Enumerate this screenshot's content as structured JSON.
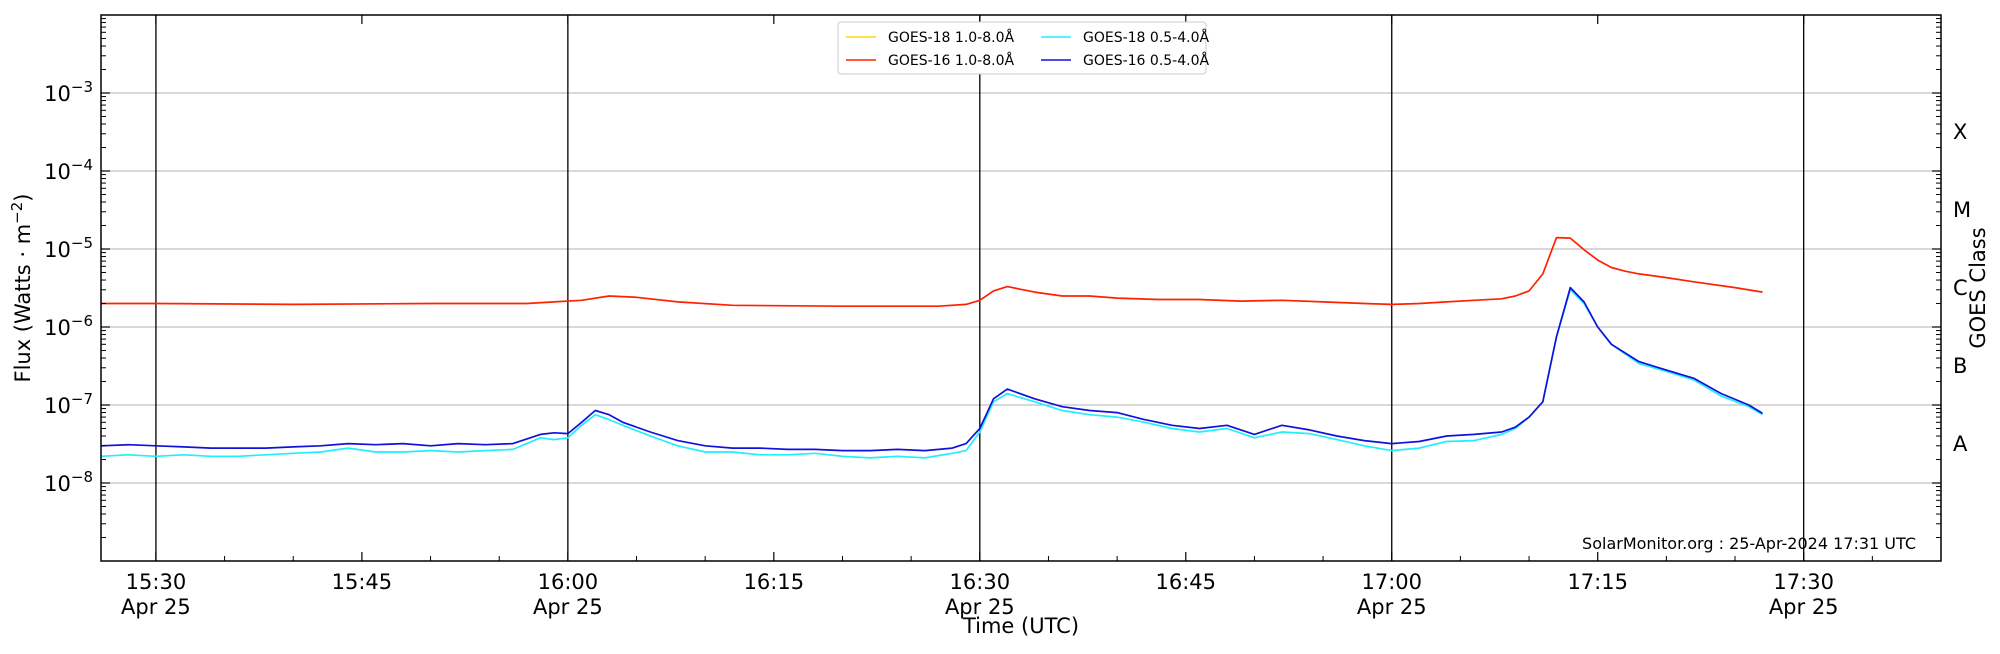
{
  "chart_data": {
    "type": "line",
    "xlabel": "Time (UTC)",
    "ylabel": "Flux (Watts · m⁻²)",
    "right_label": "GOES Class",
    "credit": "SolarMonitor.org : 25-Apr-2024 17:31 UTC",
    "x_range": [
      "15:26",
      "17:40"
    ],
    "y_scale": "log",
    "y_range": [
      1e-09,
      0.01
    ],
    "y_ticks": [
      {
        "value": 1e-08,
        "label": "10"
      },
      {
        "value": 1e-07,
        "label": "10"
      },
      {
        "value": 1e-06,
        "label": "10"
      },
      {
        "value": 1e-05,
        "label": "10"
      },
      {
        "value": 0.0001,
        "label": "10"
      },
      {
        "value": 0.001,
        "label": "10"
      }
    ],
    "y_tick_exponents": [
      "−8",
      "−7",
      "−6",
      "−5",
      "−4",
      "−3"
    ],
    "x_ticks": [
      {
        "time": "15:30",
        "line1": "15:30",
        "line2": "Apr 25"
      },
      {
        "time": "15:45",
        "line1": "15:45",
        "line2": ""
      },
      {
        "time": "16:00",
        "line1": "16:00",
        "line2": "Apr 25"
      },
      {
        "time": "16:15",
        "line1": "16:15",
        "line2": ""
      },
      {
        "time": "16:30",
        "line1": "16:30",
        "line2": "Apr 25"
      },
      {
        "time": "16:45",
        "line1": "16:45",
        "line2": ""
      },
      {
        "time": "17:00",
        "line1": "17:00",
        "line2": "Apr 25"
      },
      {
        "time": "17:15",
        "line1": "17:15",
        "line2": ""
      },
      {
        "time": "17:30",
        "line1": "17:30",
        "line2": "Apr 25"
      }
    ],
    "vertical_lines": [
      "15:30",
      "16:00",
      "16:30",
      "17:00",
      "17:30"
    ],
    "goes_classes": [
      {
        "label": "A",
        "value": 3.16e-08
      },
      {
        "label": "B",
        "value": 3.16e-07
      },
      {
        "label": "C",
        "value": 3.16e-06
      },
      {
        "label": "M",
        "value": 3.16e-05
      },
      {
        "label": "X",
        "value": 0.000316
      }
    ],
    "grid": true,
    "legend_position": "top-center",
    "series": [
      {
        "name": "GOES-18 1.0-8.0Å",
        "color": "#ffd700",
        "x": [],
        "y": []
      },
      {
        "name": "GOES-16 1.0-8.0Å",
        "color": "#ff2200",
        "x": [
          "15:26",
          "15:30",
          "15:40",
          "15:50",
          "15:57",
          "15:59",
          "16:01",
          "16:03",
          "16:05",
          "16:08",
          "16:12",
          "16:20",
          "16:27",
          "16:29",
          "16:30",
          "16:31",
          "16:32",
          "16:34",
          "16:36",
          "16:38",
          "16:40",
          "16:43",
          "16:46",
          "16:49",
          "16:52",
          "16:55",
          "16:58",
          "17:00",
          "17:02",
          "17:04",
          "17:06",
          "17:08",
          "17:09",
          "17:10",
          "17:11",
          "17:12",
          "17:13",
          "17:14",
          "17:15",
          "17:16",
          "17:17",
          "17:18",
          "17:20",
          "17:22",
          "17:25",
          "17:27"
        ],
        "y": [
          2e-06,
          2e-06,
          1.95e-06,
          2e-06,
          2e-06,
          2.1e-06,
          2.2e-06,
          2.5e-06,
          2.4e-06,
          2.1e-06,
          1.9e-06,
          1.85e-06,
          1.85e-06,
          1.95e-06,
          2.2e-06,
          2.9e-06,
          3.3e-06,
          2.8e-06,
          2.5e-06,
          2.5e-06,
          2.35e-06,
          2.25e-06,
          2.25e-06,
          2.15e-06,
          2.2e-06,
          2.1e-06,
          2e-06,
          1.95e-06,
          2e-06,
          2.1e-06,
          2.2e-06,
          2.3e-06,
          2.5e-06,
          2.9e-06,
          4.8e-06,
          1.4e-05,
          1.38e-05,
          9.8e-06,
          7.2e-06,
          5.8e-06,
          5.2e-06,
          4.8e-06,
          4.3e-06,
          3.8e-06,
          3.2e-06,
          2.8e-06
        ]
      },
      {
        "name": "GOES-18 0.5-4.0Å",
        "color": "#22eeff",
        "x": [
          "15:26",
          "15:28",
          "15:30",
          "15:32",
          "15:34",
          "15:36",
          "15:38",
          "15:40",
          "15:42",
          "15:44",
          "15:46",
          "15:48",
          "15:50",
          "15:52",
          "15:54",
          "15:56",
          "15:58",
          "15:59",
          "16:00",
          "16:01",
          "16:02",
          "16:03",
          "16:04",
          "16:06",
          "16:08",
          "16:10",
          "16:12",
          "16:14",
          "16:16",
          "16:18",
          "16:20",
          "16:22",
          "16:24",
          "16:26",
          "16:28",
          "16:29",
          "16:30",
          "16:31",
          "16:32",
          "16:34",
          "16:36",
          "16:38",
          "16:40",
          "16:42",
          "16:44",
          "16:46",
          "16:48",
          "16:50",
          "16:52",
          "16:54",
          "16:56",
          "16:58",
          "17:00",
          "17:02",
          "17:04",
          "17:06",
          "17:08",
          "17:09",
          "17:10",
          "17:11",
          "17:12",
          "17:13",
          "17:14",
          "17:15",
          "17:16",
          "17:18",
          "17:20",
          "17:22",
          "17:24",
          "17:26",
          "17:27"
        ],
        "y": [
          2.2e-08,
          2.3e-08,
          2.2e-08,
          2.3e-08,
          2.2e-08,
          2.2e-08,
          2.3e-08,
          2.4e-08,
          2.5e-08,
          2.8e-08,
          2.5e-08,
          2.5e-08,
          2.6e-08,
          2.5e-08,
          2.6e-08,
          2.7e-08,
          3.8e-08,
          3.6e-08,
          3.8e-08,
          5.5e-08,
          7.5e-08,
          6.5e-08,
          5.5e-08,
          4e-08,
          3e-08,
          2.5e-08,
          2.5e-08,
          2.3e-08,
          2.3e-08,
          2.4e-08,
          2.2e-08,
          2.1e-08,
          2.2e-08,
          2.1e-08,
          2.4e-08,
          2.6e-08,
          4.5e-08,
          1.1e-07,
          1.4e-07,
          1.1e-07,
          8.5e-08,
          7.5e-08,
          7e-08,
          6e-08,
          5e-08,
          4.5e-08,
          5e-08,
          3.8e-08,
          4.5e-08,
          4.3e-08,
          3.6e-08,
          3e-08,
          2.6e-08,
          2.8e-08,
          3.4e-08,
          3.5e-08,
          4.2e-08,
          5e-08,
          7e-08,
          1.1e-07,
          7.5e-07,
          3e-06,
          2e-06,
          1e-06,
          6e-07,
          3.4e-07,
          2.7e-07,
          2.1e-07,
          1.3e-07,
          9.5e-08,
          7.5e-08
        ]
      },
      {
        "name": "GOES-16 0.5-4.0Å",
        "color": "#1111dd",
        "x": [
          "15:26",
          "15:28",
          "15:30",
          "15:32",
          "15:34",
          "15:36",
          "15:38",
          "15:40",
          "15:42",
          "15:44",
          "15:46",
          "15:48",
          "15:50",
          "15:52",
          "15:54",
          "15:56",
          "15:58",
          "15:59",
          "16:00",
          "16:01",
          "16:02",
          "16:03",
          "16:04",
          "16:06",
          "16:08",
          "16:10",
          "16:12",
          "16:14",
          "16:16",
          "16:18",
          "16:20",
          "16:22",
          "16:24",
          "16:26",
          "16:28",
          "16:29",
          "16:30",
          "16:31",
          "16:32",
          "16:34",
          "16:36",
          "16:38",
          "16:40",
          "16:42",
          "16:44",
          "16:46",
          "16:48",
          "16:50",
          "16:52",
          "16:54",
          "16:56",
          "16:58",
          "17:00",
          "17:02",
          "17:04",
          "17:06",
          "17:08",
          "17:09",
          "17:10",
          "17:11",
          "17:12",
          "17:13",
          "17:14",
          "17:15",
          "17:16",
          "17:18",
          "17:20",
          "17:22",
          "17:24",
          "17:26",
          "17:27"
        ],
        "y": [
          3e-08,
          3.1e-08,
          3e-08,
          2.9e-08,
          2.8e-08,
          2.8e-08,
          2.8e-08,
          2.9e-08,
          3e-08,
          3.2e-08,
          3.1e-08,
          3.2e-08,
          3e-08,
          3.2e-08,
          3.1e-08,
          3.2e-08,
          4.2e-08,
          4.4e-08,
          4.3e-08,
          6e-08,
          8.5e-08,
          7.5e-08,
          6e-08,
          4.5e-08,
          3.5e-08,
          3e-08,
          2.8e-08,
          2.8e-08,
          2.7e-08,
          2.7e-08,
          2.6e-08,
          2.6e-08,
          2.7e-08,
          2.6e-08,
          2.8e-08,
          3.2e-08,
          5e-08,
          1.2e-07,
          1.6e-07,
          1.2e-07,
          9.5e-08,
          8.5e-08,
          8e-08,
          6.5e-08,
          5.5e-08,
          5e-08,
          5.5e-08,
          4.2e-08,
          5.5e-08,
          4.8e-08,
          4e-08,
          3.5e-08,
          3.2e-08,
          3.4e-08,
          4e-08,
          4.2e-08,
          4.5e-08,
          5.2e-08,
          7e-08,
          1.1e-07,
          7.5e-07,
          3.2e-06,
          2.1e-06,
          1e-06,
          6e-07,
          3.6e-07,
          2.8e-07,
          2.2e-07,
          1.4e-07,
          1e-07,
          7.8e-08
        ]
      }
    ]
  }
}
